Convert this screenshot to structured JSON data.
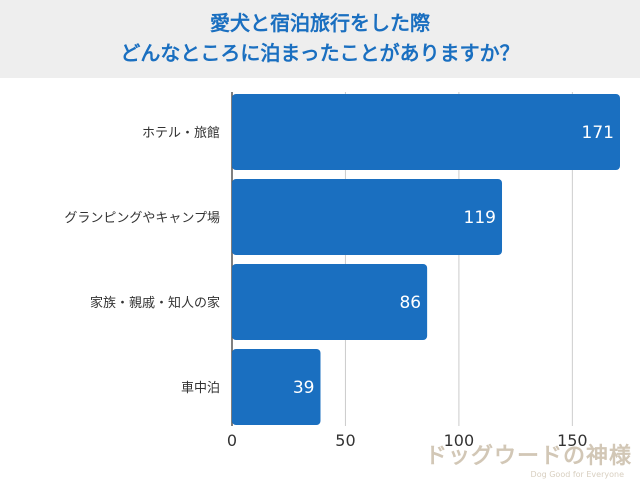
{
  "title_line1": "愛犬と宿泊旅行をした際",
  "title_line2": "どんなところに泊まったことがありますか？",
  "watermark": {
    "text": "ドッグウードの神様",
    "subtext": "Dog Good for Everyone"
  },
  "colors": {
    "bar": "#1a6fc0",
    "title": "#1a6fc0",
    "header_bg": "#eeeeee",
    "grid": "#cccccc"
  },
  "chart_data": {
    "type": "bar",
    "orientation": "horizontal",
    "categories": [
      "ホテル・旅館",
      "グランピングやキャンプ場",
      "家族・親戚・知人の家",
      "車中泊"
    ],
    "values": [
      171,
      119,
      86,
      39
    ],
    "xlim": [
      0,
      171
    ],
    "xticks": [
      0,
      50,
      100,
      150
    ],
    "data_labels": true,
    "grid": true
  }
}
